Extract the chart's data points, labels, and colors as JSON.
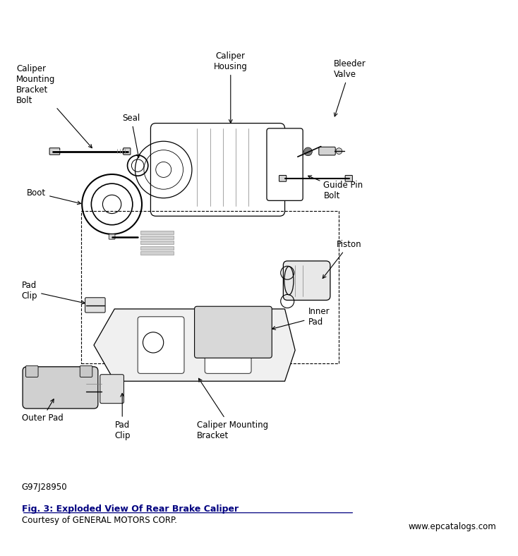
{
  "title": "Fig. 3: Exploded View Of Rear Brake Caliper",
  "subtitle": "Courtesy of GENERAL MOTORS CORP.",
  "watermark": "www.epcatalogs.com",
  "part_id": "G97J28950",
  "bg_color": "#ffffff",
  "line_color": "#000000",
  "fig_width": 7.34,
  "fig_height": 7.88,
  "dpi": 100
}
